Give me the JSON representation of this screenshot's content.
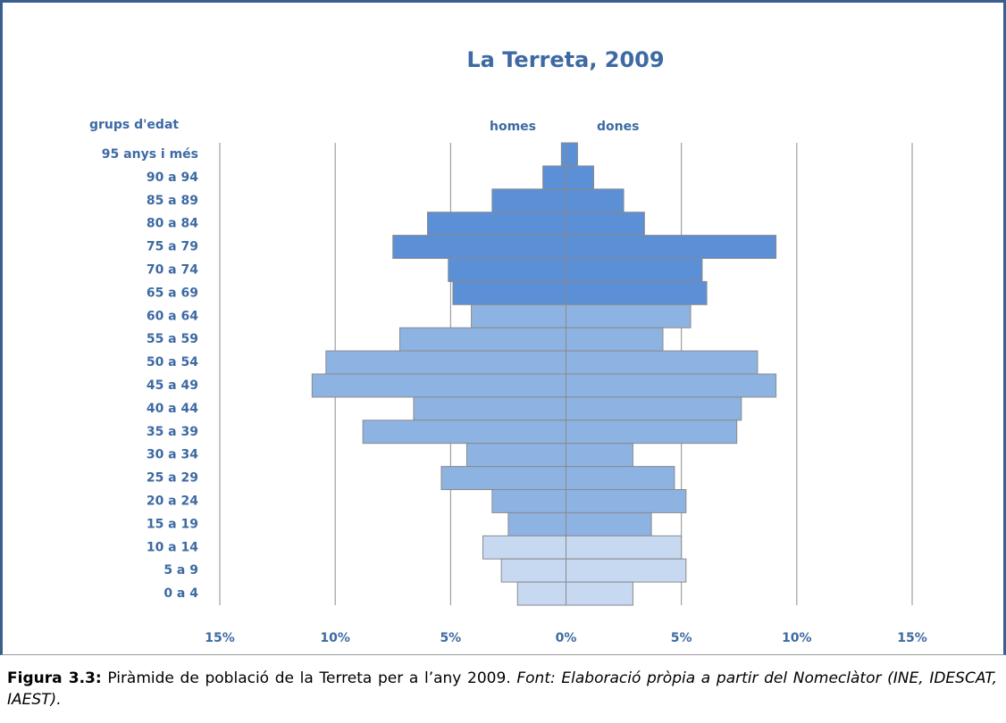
{
  "chart_data": {
    "type": "pyramid",
    "title": "La Terreta, 2009",
    "y_label": "grups d'edat",
    "categories": [
      "95 anys i més",
      "90 a 94",
      "85 a 89",
      "80 a 84",
      "75 a 79",
      "70 a 74",
      "65 a 69",
      "60 a 64",
      "55 a 59",
      "50 a 54",
      "45 a 49",
      "40 a 44",
      "35 a 39",
      "30 a 34",
      "25 a 29",
      "20 a 24",
      "15 a 19",
      "10 a 14",
      "5 a 9",
      "0 a 4"
    ],
    "colors": [
      "#5b8fd6",
      "#5b8fd6",
      "#5b8fd6",
      "#5b8fd6",
      "#5b8fd6",
      "#5b8fd6",
      "#5b8fd6",
      "#8db3e2",
      "#8db3e2",
      "#8db3e2",
      "#8db3e2",
      "#8db3e2",
      "#8db3e2",
      "#8db3e2",
      "#8db3e2",
      "#8db3e2",
      "#8db3e2",
      "#c6d9f1",
      "#c6d9f1",
      "#c6d9f1"
    ],
    "series": [
      {
        "name": "homes",
        "values": [
          -0.2,
          -1.0,
          -3.2,
          -6.0,
          -7.5,
          -5.1,
          -4.9,
          -4.1,
          -7.2,
          -10.4,
          -11.0,
          -6.6,
          -8.8,
          -4.3,
          -5.4,
          -3.2,
          -2.5,
          -3.6,
          -2.8,
          -2.1
        ]
      },
      {
        "name": "dones",
        "values": [
          0.5,
          1.2,
          2.5,
          3.4,
          9.1,
          5.9,
          6.1,
          5.4,
          4.2,
          8.3,
          9.1,
          7.6,
          7.4,
          2.9,
          4.7,
          5.2,
          3.7,
          5.0,
          5.2,
          2.9
        ]
      }
    ],
    "xlim": [
      -15,
      15
    ],
    "xticks": [
      {
        "value": -15,
        "label": "15%"
      },
      {
        "value": -10,
        "label": "10%"
      },
      {
        "value": -5,
        "label": "5%"
      },
      {
        "value": 0,
        "label": "0%"
      },
      {
        "value": 5,
        "label": "5%"
      },
      {
        "value": 10,
        "label": "10%"
      },
      {
        "value": 15,
        "label": "15%"
      }
    ],
    "grid": true
  },
  "caption": {
    "label": "Figura 3.3:",
    "text": " Piràmide de població de la Terreta per a l’any 2009. ",
    "source": "Font: Elaboració pròpia a partir del Nomeclàtor (INE, IDESCAT, IAEST)."
  }
}
